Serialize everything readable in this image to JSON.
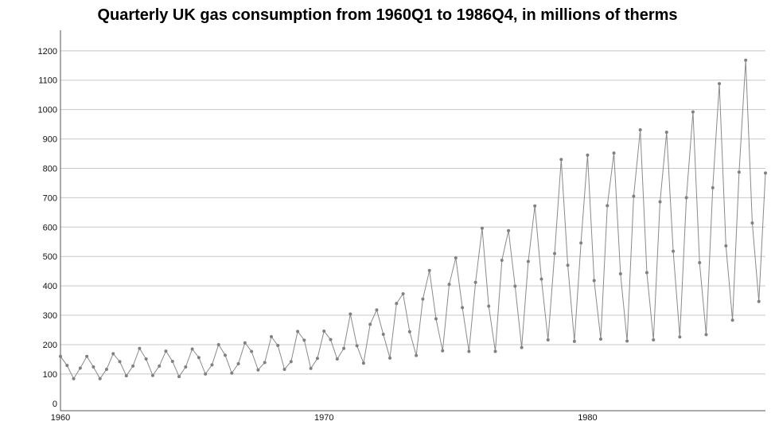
{
  "chart_data": {
    "type": "line",
    "title": "Quarterly UK gas consumption from 1960Q1 to 1986Q4, in millions of therms",
    "xlabel": "",
    "ylabel": "",
    "xlim": [
      1960,
      1986.75
    ],
    "ylim": [
      -25,
      1270
    ],
    "grid": true,
    "legend": "none",
    "x_ticks": [
      1960,
      1970,
      1980
    ],
    "x_tick_labels": [
      "1960",
      "1970",
      "1980"
    ],
    "y_ticks": [
      0,
      100,
      200,
      300,
      400,
      500,
      600,
      700,
      800,
      900,
      1000,
      1100,
      1200
    ],
    "y_tick_labels": [
      "0",
      "100",
      "200",
      "300",
      "400",
      "500",
      "600",
      "700",
      "800",
      "900",
      "1000",
      "1100",
      "1200"
    ],
    "series": [
      {
        "name": "Gas consumption",
        "start_year": 1960,
        "frequency": 4,
        "color": "#808080",
        "values": [
          160,
          129,
          84,
          120,
          160,
          124,
          84,
          116,
          169,
          142,
          94,
          127,
          187,
          151,
          95,
          127,
          178,
          143,
          91,
          124,
          185,
          156,
          100,
          131,
          200,
          164,
          103,
          135,
          206,
          177,
          114,
          139,
          227,
          197,
          116,
          142,
          245,
          215,
          119,
          153,
          246,
          217,
          151,
          187,
          304,
          196,
          137,
          269,
          318,
          235,
          154,
          340,
          373,
          244,
          163,
          355,
          452,
          288,
          179,
          405,
          495,
          326,
          177,
          412,
          596,
          331,
          177,
          487,
          588,
          399,
          190,
          483,
          672,
          423,
          216,
          510,
          830,
          470,
          211,
          546,
          845,
          418,
          219,
          673,
          852,
          441,
          212,
          705,
          931,
          445,
          216,
          686,
          923,
          518,
          226,
          700,
          992,
          479,
          234,
          734,
          1088,
          536,
          283,
          787,
          1168,
          614,
          347,
          784
        ]
      }
    ]
  }
}
